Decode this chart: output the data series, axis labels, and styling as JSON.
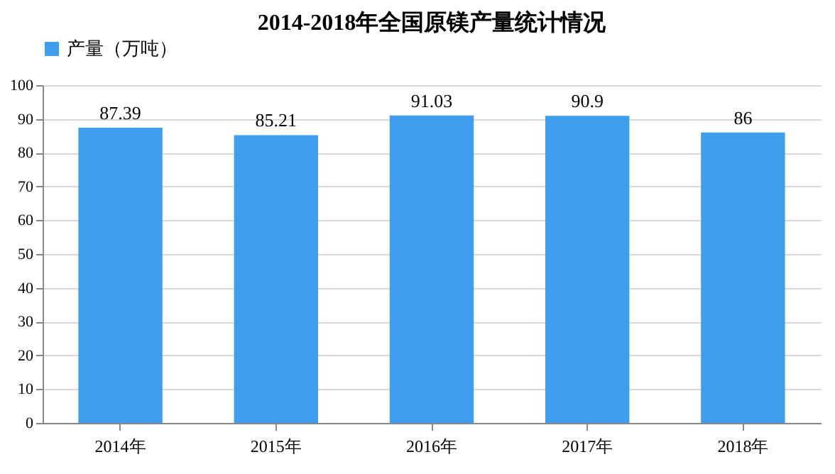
{
  "chart_data": {
    "type": "bar",
    "title": "2014-2018年全国原镁产量统计情况",
    "categories": [
      "2014年",
      "2015年",
      "2016年",
      "2017年",
      "2018年"
    ],
    "series": [
      {
        "name": "产量（万吨）",
        "color": "#3d9ef0",
        "values": [
          87.39,
          85.21,
          91.03,
          90.9,
          86
        ]
      }
    ],
    "ylim": [
      0,
      100
    ],
    "yticks": [
      0,
      10,
      20,
      30,
      40,
      50,
      60,
      70,
      80,
      90,
      100
    ],
    "grid": "y",
    "legend": "top",
    "data_labels": true
  }
}
